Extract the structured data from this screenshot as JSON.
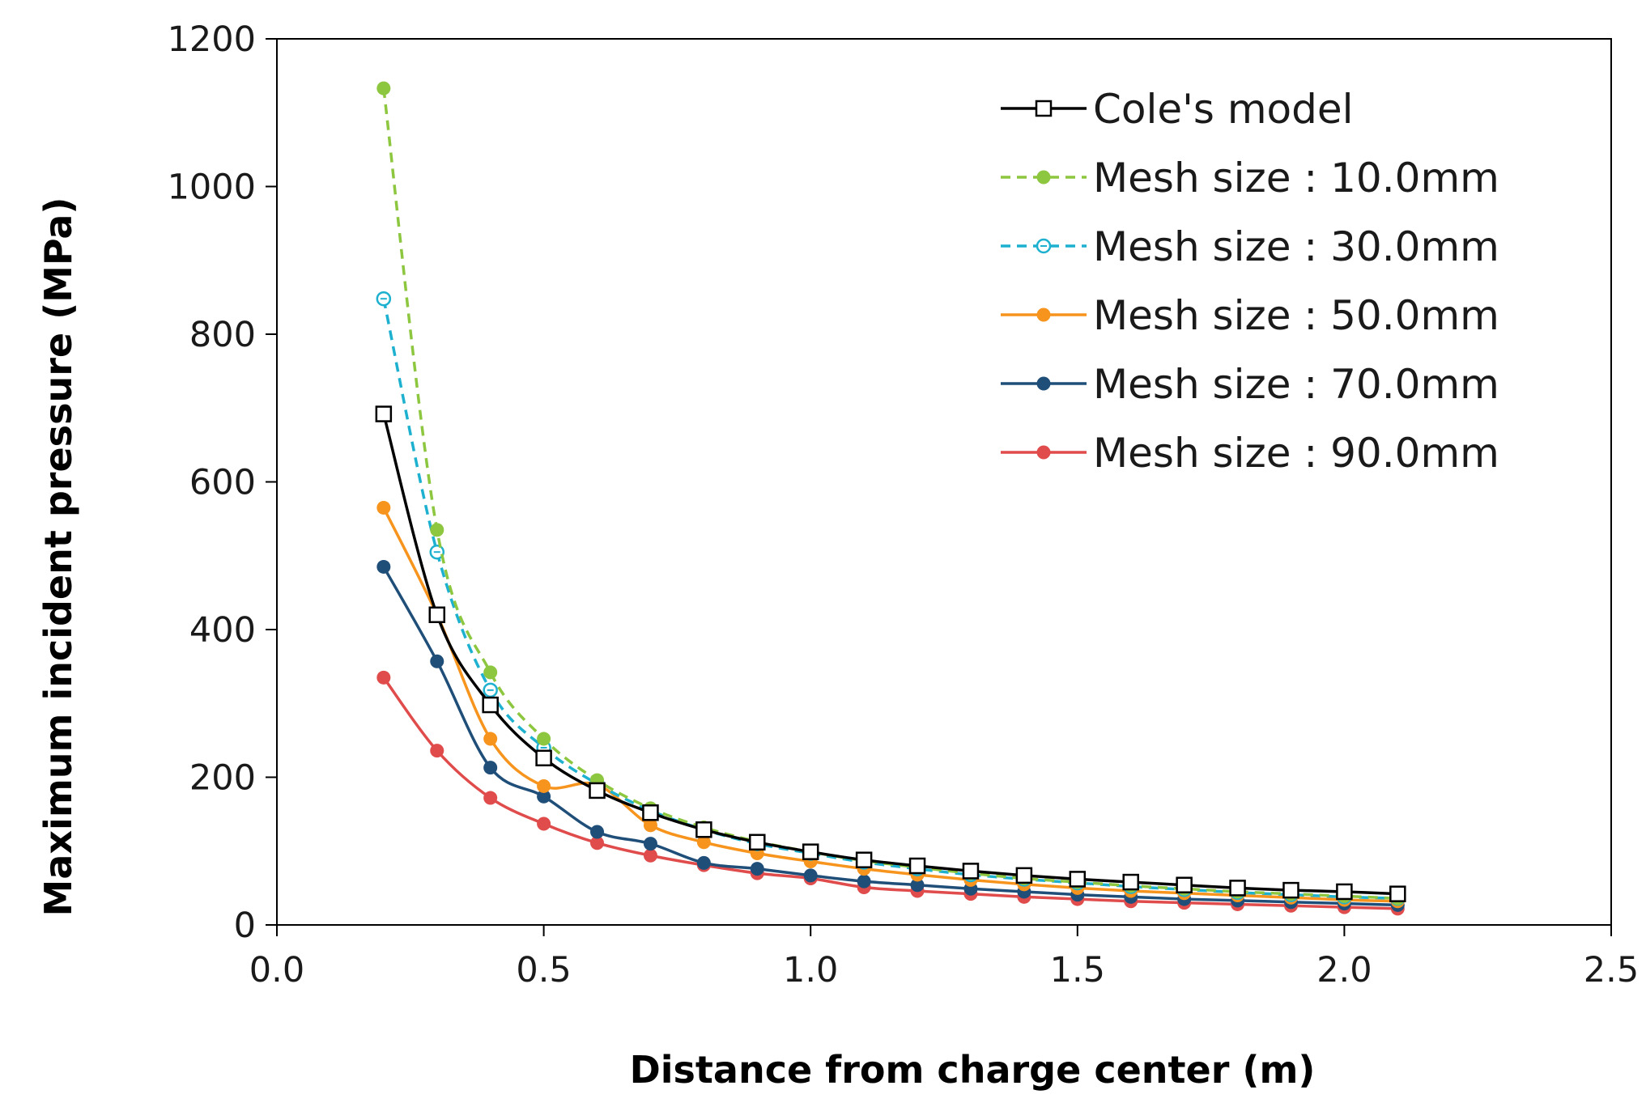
{
  "chart_data": {
    "type": "line",
    "title": "",
    "xlabel": "Distance from charge center (m)",
    "ylabel": "Maximum incident pressure (MPa)",
    "xlim": [
      0.0,
      2.5
    ],
    "ylim": [
      0,
      1200
    ],
    "xticks": [
      "0.0",
      "0.5",
      "1.0",
      "1.5",
      "2.0",
      "2.5"
    ],
    "yticks": [
      "0",
      "200",
      "400",
      "600",
      "800",
      "1000",
      "1200"
    ],
    "grid": false,
    "legend_position": "top-right",
    "x": [
      0.2,
      0.3,
      0.4,
      0.5,
      0.6,
      0.7,
      0.8,
      0.9,
      1.0,
      1.1,
      1.2,
      1.3,
      1.4,
      1.5,
      1.6,
      1.7,
      1.8,
      1.9,
      2.0,
      2.1
    ],
    "series": [
      {
        "name": "Cole's model",
        "color": "#000000",
        "dash": "solid",
        "marker": "open-square",
        "values": [
          692,
          420,
          298,
          226,
          182,
          152,
          129,
          112,
          99,
          88,
          80,
          73,
          67,
          62,
          58,
          54,
          50,
          47,
          45,
          42
        ]
      },
      {
        "name": "Mesh size : 10.0mm",
        "color": "#8DC63F",
        "dash": "dashed",
        "marker": "filled-circle",
        "values": [
          1133,
          535,
          342,
          252,
          196,
          158,
          132,
          113,
          99,
          87,
          78,
          70,
          63,
          58,
          53,
          49,
          45,
          42,
          39,
          36
        ]
      },
      {
        "name": "Mesh size : 30.0mm",
        "color": "#1EB1CF",
        "dash": "dashed",
        "marker": "open-circle",
        "values": [
          848,
          505,
          318,
          240,
          191,
          155,
          129,
          110,
          97,
          85,
          76,
          68,
          62,
          57,
          52,
          48,
          44,
          41,
          38,
          36
        ]
      },
      {
        "name": "Mesh size : 50.0mm",
        "color": "#F7941D",
        "dash": "solid",
        "marker": "filled-circle",
        "values": [
          565,
          420,
          252,
          188,
          190,
          135,
          112,
          97,
          86,
          76,
          68,
          61,
          55,
          50,
          46,
          43,
          40,
          37,
          34,
          32
        ]
      },
      {
        "name": "Mesh size : 70.0mm",
        "color": "#1F4E79",
        "dash": "solid",
        "marker": "filled-circle",
        "values": [
          485,
          357,
          213,
          174,
          126,
          110,
          84,
          76,
          67,
          59,
          54,
          49,
          45,
          41,
          38,
          35,
          33,
          31,
          29,
          27
        ]
      },
      {
        "name": "Mesh size : 90.0mm",
        "color": "#E04B4B",
        "dash": "solid",
        "marker": "filled-circle",
        "values": [
          335,
          236,
          172,
          137,
          111,
          94,
          81,
          70,
          63,
          51,
          46,
          42,
          38,
          35,
          32,
          30,
          28,
          26,
          24,
          22
        ]
      }
    ]
  }
}
